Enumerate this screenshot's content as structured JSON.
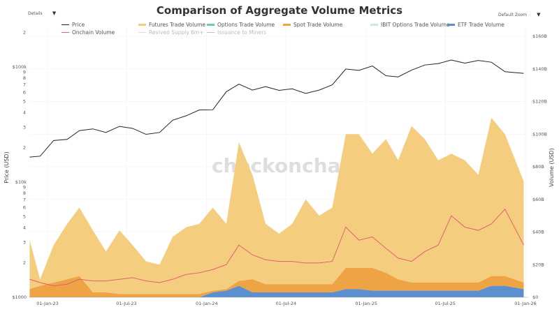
{
  "controls": {
    "details": "Details",
    "zoom": "Default Zoom"
  },
  "chart_data": {
    "type": "area",
    "title": "Comparison of Aggregate Volume Metrics",
    "watermark": "checkonchain",
    "ylabel_left": "Price (USD)",
    "ylabel_right": "Volume (USD)",
    "left_axis": {
      "scale": "log",
      "range": [
        1000,
        200000
      ],
      "tick_labels": [
        {
          "v": 1000,
          "t": "$1000"
        },
        {
          "v": 2000,
          "t": "2"
        },
        {
          "v": 3000,
          "t": "3"
        },
        {
          "v": 4000,
          "t": "4"
        },
        {
          "v": 5000,
          "t": "5"
        },
        {
          "v": 6000,
          "t": "6"
        },
        {
          "v": 7000,
          "t": "7"
        },
        {
          "v": 8000,
          "t": "8"
        },
        {
          "v": 9000,
          "t": "9"
        },
        {
          "v": 10000,
          "t": "$10k"
        },
        {
          "v": 20000,
          "t": "2"
        },
        {
          "v": 30000,
          "t": "3"
        },
        {
          "v": 40000,
          "t": "4"
        },
        {
          "v": 50000,
          "t": "5"
        },
        {
          "v": 60000,
          "t": "6"
        },
        {
          "v": 70000,
          "t": "7"
        },
        {
          "v": 80000,
          "t": "8"
        },
        {
          "v": 90000,
          "t": "9"
        },
        {
          "v": 100000,
          "t": "$100k"
        },
        {
          "v": 200000,
          "t": "2"
        }
      ]
    },
    "right_axis": {
      "scale": "linear",
      "range": [
        0,
        160
      ],
      "unit": "B",
      "tick_labels": [
        {
          "v": 0,
          "t": "$0"
        },
        {
          "v": 20,
          "t": "$20B"
        },
        {
          "v": 40,
          "t": "$40B"
        },
        {
          "v": 60,
          "t": "$60B"
        },
        {
          "v": 80,
          "t": "$80B"
        },
        {
          "v": 100,
          "t": "$100B"
        },
        {
          "v": 120,
          "t": "$120B"
        },
        {
          "v": 140,
          "t": "$140B"
        },
        {
          "v": 160,
          "t": "$160B"
        }
      ]
    },
    "x_axis": {
      "type": "date",
      "range": [
        "2022-11-21",
        "2026-01-01"
      ],
      "tick_labels": [
        {
          "d": "2023-01-01",
          "t": "01-Jan-23"
        },
        {
          "d": "2023-07-01",
          "t": "01-Jul-23"
        },
        {
          "d": "2024-01-01",
          "t": "01-Jan-24"
        },
        {
          "d": "2024-07-01",
          "t": "01-Jul-24"
        },
        {
          "d": "2025-01-01",
          "t": "01-Jan-25"
        },
        {
          "d": "2025-07-01",
          "t": "01-Jul-25"
        },
        {
          "d": "2026-01-01",
          "t": "01-Jan-26"
        }
      ]
    },
    "grid": true,
    "legend_position": "top",
    "legend": [
      {
        "name": "Price",
        "color": "#222222"
      },
      {
        "name": "Futures Trade Volume",
        "color": "#f5cd7f"
      },
      {
        "name": "Options Trade Volume",
        "color": "#6ccf9f"
      },
      {
        "name": "Spot Trade Volume",
        "color": "#eea444"
      },
      {
        "name": "IBIT Options Trade Volume",
        "color": "#c8ecd4"
      },
      {
        "name": "ETF Trade Volume",
        "color": "#5b8fd0"
      },
      {
        "name": "Onchain Volume",
        "color": "#e06070"
      },
      {
        "name": "Revived Supply 6m+",
        "color": "#d9b8d8",
        "hidden": true
      },
      {
        "name": "Issuance to Miners",
        "color": "#999999",
        "hidden": true
      }
    ],
    "x": [
      "2022-11-21",
      "2022-12-15",
      "2023-01-15",
      "2023-02-15",
      "2023-03-15",
      "2023-04-15",
      "2023-05-15",
      "2023-06-15",
      "2023-07-15",
      "2023-08-15",
      "2023-09-15",
      "2023-10-15",
      "2023-11-15",
      "2023-12-15",
      "2024-01-15",
      "2024-02-15",
      "2024-03-15",
      "2024-04-15",
      "2024-05-15",
      "2024-06-15",
      "2024-07-15",
      "2024-08-15",
      "2024-09-15",
      "2024-10-15",
      "2024-11-15",
      "2024-12-15",
      "2025-01-15",
      "2025-02-15",
      "2025-03-15",
      "2025-04-15",
      "2025-05-15",
      "2025-06-15",
      "2025-07-15",
      "2025-08-15",
      "2025-09-15",
      "2025-10-15",
      "2025-11-15",
      "2025-12-28"
    ],
    "series": [
      {
        "name": "Price",
        "axis": "left",
        "kind": "line",
        "values": [
          16500,
          16800,
          23000,
          23500,
          28000,
          29000,
          27000,
          30500,
          29300,
          26000,
          27000,
          34500,
          37700,
          42300,
          42500,
          61000,
          71000,
          63000,
          67500,
          62700,
          64600,
          59000,
          63000,
          70000,
          96000,
          93400,
          102000,
          84000,
          82000,
          94000,
          104000,
          107000,
          115000,
          108000,
          114000,
          110000,
          91000,
          88000
        ]
      },
      {
        "name": "ETF Trade Volume",
        "axis": "right",
        "kind": "stack",
        "values": [
          0,
          0,
          0,
          0,
          0,
          0,
          0,
          0,
          0,
          0,
          0,
          0,
          0,
          0,
          3,
          4,
          7,
          3,
          3,
          3,
          3,
          3,
          3,
          3,
          5,
          5,
          4,
          4,
          4,
          4,
          4,
          4,
          4,
          4,
          4,
          7,
          7,
          5
        ]
      },
      {
        "name": "Spot Trade Volume",
        "axis": "right",
        "kind": "stack",
        "values": [
          5,
          7,
          9,
          11,
          13,
          3,
          3,
          2,
          2,
          2,
          2,
          2,
          2,
          2,
          1,
          1,
          3,
          8,
          5,
          5,
          5,
          5,
          5,
          5,
          13,
          13,
          14,
          11,
          7,
          5,
          5,
          5,
          5,
          5,
          5,
          6,
          6,
          4
        ]
      },
      {
        "name": "Futures Trade Volume",
        "axis": "right",
        "kind": "stack",
        "values": [
          30,
          4,
          23,
          34,
          42,
          38,
          25,
          39,
          30,
          20,
          18,
          35,
          41,
          43,
          51,
          40,
          85,
          64,
          37,
          31,
          37,
          52,
          42,
          47,
          82,
          82,
          70,
          82,
          73,
          96,
          88,
          75,
          79,
          75,
          66,
          97,
          87,
          62
        ]
      },
      {
        "name": "Onchain Volume",
        "axis": "right",
        "kind": "line",
        "values": [
          11,
          9,
          7,
          8,
          11,
          10,
          10,
          11,
          12,
          10,
          9,
          11,
          14,
          15,
          17,
          20,
          32,
          26,
          23,
          22,
          22,
          21,
          21,
          22,
          43,
          35,
          37,
          30,
          24,
          22,
          28,
          32,
          50,
          43,
          41,
          45,
          54,
          32
        ]
      }
    ]
  }
}
